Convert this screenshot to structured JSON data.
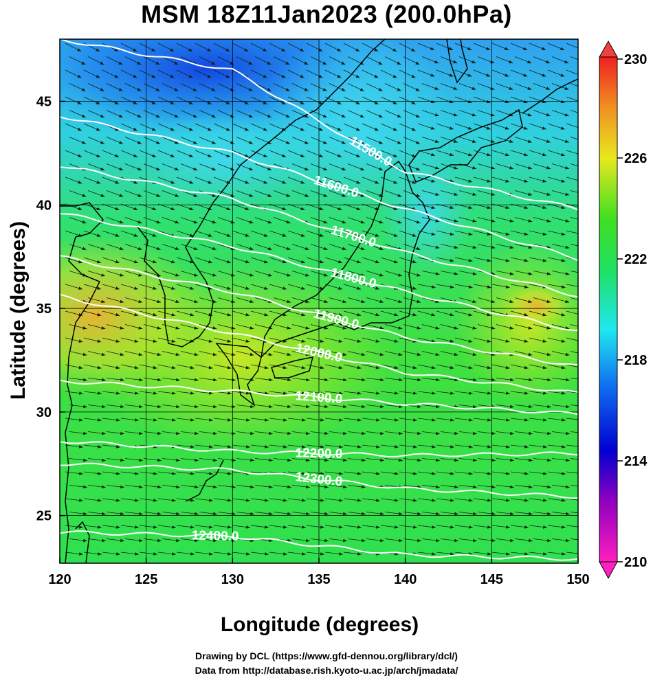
{
  "title": "MSM 18Z11Jan2023 (200.0hPa)",
  "map": {
    "lon_range": [
      120,
      150
    ],
    "lat_range": [
      22.7,
      48
    ],
    "x_ticks": [
      "120",
      "125",
      "130",
      "135",
      "140",
      "145",
      "150"
    ],
    "y_ticks": [
      "25",
      "30",
      "35",
      "40",
      "45"
    ],
    "xlabel": "Longitude (degrees)",
    "ylabel": "Latitude  (degrees)",
    "grid": true,
    "field": "temperature (shaded), geopotential height (white contours), wind (arrows)",
    "contours": [
      {
        "label": "11500.0",
        "lat_at": [
          [
            120,
            48.0
          ],
          [
            130,
            46.5
          ],
          [
            140,
            41.6
          ],
          [
            150,
            39.8
          ]
        ]
      },
      {
        "label": "11600.0",
        "lat_at": [
          [
            120,
            44.3
          ],
          [
            130,
            42.5
          ],
          [
            140,
            39.8
          ],
          [
            150,
            37.4
          ]
        ]
      },
      {
        "label": "11700.0",
        "lat_at": [
          [
            120,
            41.9
          ],
          [
            130,
            40.3
          ],
          [
            140,
            37.7
          ],
          [
            150,
            35.6
          ]
        ]
      },
      {
        "label": "11800.0",
        "lat_at": [
          [
            120,
            39.6
          ],
          [
            130,
            38.0
          ],
          [
            140,
            35.8
          ],
          [
            150,
            33.9
          ]
        ]
      },
      {
        "label": "11900.0",
        "lat_at": [
          [
            120,
            37.5
          ],
          [
            130,
            35.8
          ],
          [
            140,
            33.6
          ],
          [
            150,
            32.2
          ]
        ]
      },
      {
        "label": "12000.0",
        "lat_at": [
          [
            120,
            35.6
          ],
          [
            130,
            33.8
          ],
          [
            140,
            31.9
          ],
          [
            150,
            30.9
          ]
        ]
      },
      {
        "label": "12100.0",
        "lat_at": [
          [
            120,
            31.5
          ],
          [
            130,
            31.0
          ],
          [
            140,
            30.4
          ],
          [
            150,
            29.9
          ]
        ]
      },
      {
        "label": "12200.0",
        "lat_at": [
          [
            120,
            28.6
          ],
          [
            130,
            28.1
          ],
          [
            140,
            27.9
          ],
          [
            150,
            28.0
          ]
        ]
      },
      {
        "label": "12300.0",
        "lat_at": [
          [
            120,
            27.5
          ],
          [
            130,
            27.2
          ],
          [
            140,
            26.3
          ],
          [
            150,
            25.9
          ]
        ]
      },
      {
        "label": "12400.0",
        "lat_at": [
          [
            120,
            24.2
          ],
          [
            130,
            24.0
          ],
          [
            140,
            23.1
          ],
          [
            150,
            22.9
          ]
        ]
      }
    ]
  },
  "colorbar": {
    "min": 210,
    "max": 230,
    "tick_labels": [
      "230",
      "226",
      "222",
      "218",
      "214",
      "210"
    ]
  },
  "colors": {
    "cold": "#1030e0",
    "cool": "#20c8f0",
    "mid": "#20e040",
    "warm": "#e0e020",
    "hot": "#f0a020"
  },
  "credits": {
    "line1": "Drawing by DCL (https://www.gfd-dennou.org/library/dcl/)",
    "line2": "Data from http://database.rish.kyoto-u.ac.jp/arch/jmadata/"
  }
}
